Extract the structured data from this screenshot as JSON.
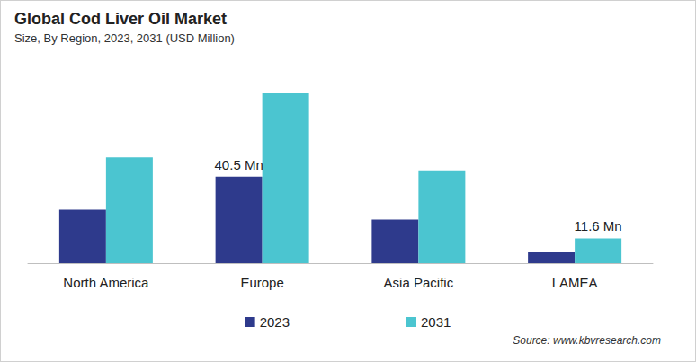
{
  "chart_data": {
    "type": "bar",
    "title": "Global Cod Liver Oil Market",
    "subtitle": "Size, By Region, 2023, 2031 (USD Million)",
    "source": "Source: www.kbvresearch.com",
    "categories": [
      "North America",
      "Europe",
      "Asia Pacific",
      "LAMEA"
    ],
    "series": [
      {
        "name": "2023",
        "color": "#2e3a8c",
        "values": [
          25.0,
          40.5,
          20.4,
          5.0
        ],
        "value_labels": [
          null,
          "40.5 Mn",
          null,
          null
        ]
      },
      {
        "name": "2031",
        "color": "#4bc5d0",
        "values": [
          49.6,
          79.7,
          43.4,
          11.6
        ],
        "value_labels": [
          null,
          null,
          null,
          "11.6 Mn"
        ]
      }
    ],
    "ylim": [
      0,
      85
    ],
    "grid": false,
    "legend": "bottom",
    "data_labels": true,
    "tick_labels": "x"
  }
}
